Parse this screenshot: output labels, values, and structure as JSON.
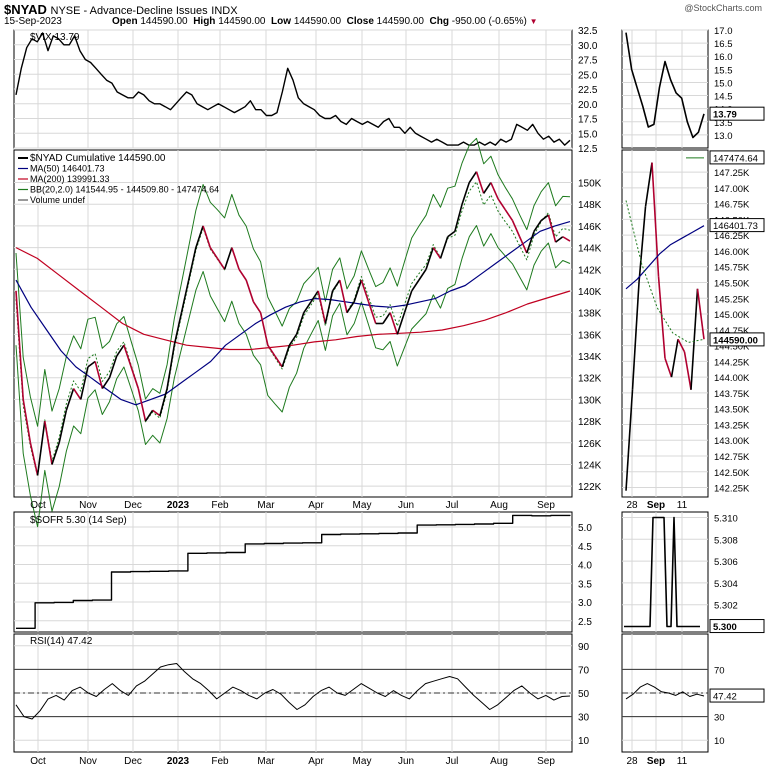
{
  "header": {
    "symbol": "$NYAD",
    "name": "NYSE - Advance-Decline Issues",
    "exchange": "INDX",
    "date": "15-Sep-2023",
    "open_label": "Open",
    "open": "144590.00",
    "high_label": "High",
    "high": "144590.00",
    "low_label": "Low",
    "low": "144590.00",
    "close_label": "Close",
    "close": "144590.00",
    "chg_label": "Chg",
    "chg": "-950.00 (-0.65%)",
    "credit": "@StockCharts.com"
  },
  "colors": {
    "price": "#000000",
    "down": "#b00030",
    "ma50": "#000080",
    "ma200": "#c00020",
    "bb": "#1e7a1e",
    "grid": "#d8d8d8",
    "ref": "#555555"
  },
  "x_labels_main": [
    "Oct",
    "Nov",
    "Dec",
    "2023",
    "Feb",
    "Mar",
    "Apr",
    "May",
    "Jun",
    "Jul",
    "Aug",
    "Sep"
  ],
  "x_labels_zoom": [
    "28",
    "Sep",
    "11"
  ],
  "chart_data": [
    {
      "type": "line",
      "title": "$VIX 13.79",
      "legend": [
        "$VIX 13.79"
      ],
      "ylim": [
        12.5,
        32.5
      ],
      "yticks": [
        "32.5",
        "30.0",
        "27.5",
        "25.0",
        "22.5",
        "20.0",
        "17.5",
        "15.0",
        "12.5"
      ],
      "zoom_ylim": [
        12.5,
        17.0
      ],
      "zoom_yticks": [
        "17.0",
        "16.5",
        "16.0",
        "15.5",
        "15.0",
        "14.5",
        "14.0",
        "13.5",
        "13.0"
      ],
      "last_value": "13.79",
      "series": [
        {
          "name": "$VIX",
          "values": [
            21.5,
            26,
            29.5,
            31,
            30.5,
            32,
            29,
            31.5,
            31,
            30,
            30,
            31.5,
            29,
            27.5,
            27,
            26,
            25,
            24,
            23.5,
            22,
            21.5,
            21,
            21,
            22,
            21.5,
            20.5,
            20,
            20,
            19.5,
            19,
            20,
            21,
            22,
            21.5,
            20,
            19.5,
            19,
            19.5,
            20,
            19.5,
            19,
            18.5,
            19,
            19.5,
            20.5,
            19,
            19,
            18,
            18,
            18.5,
            22,
            26,
            24,
            21,
            20,
            19.5,
            19,
            18,
            17.5,
            17.5,
            18,
            17,
            16.5,
            17.5,
            17,
            16.5,
            17,
            16.5,
            16,
            17,
            17.5,
            16,
            16,
            15,
            16,
            15,
            14.5,
            14,
            13.5,
            14,
            13.5,
            13,
            13,
            13,
            13.5,
            13,
            13,
            13.5,
            13,
            13.5,
            13,
            14,
            13.5,
            14,
            16.5,
            16,
            15.5,
            16.5,
            15,
            14,
            14.5,
            13.5,
            14,
            13,
            13.8
          ]
        }
      ]
    },
    {
      "type": "line",
      "title": "$NYAD Cumulative 144590.00",
      "legend": [
        "$NYAD Cumulative 144590.00",
        "MA(50) 146401.73",
        "MA(200) 139991.33",
        "BB(20,2.0) 141544.95 - 144509.80 - 147474.64",
        "Volume undef"
      ],
      "ylim": [
        121000,
        153000
      ],
      "yticks": [
        "150K",
        "148K",
        "146K",
        "144K",
        "142K",
        "140K",
        "138K",
        "136K",
        "134K",
        "132K",
        "130K",
        "128K",
        "126K",
        "124K",
        "122K"
      ],
      "zoom_ylim": [
        142100,
        147600
      ],
      "zoom_yticks": [
        "147.25K",
        "147.00K",
        "146.75K",
        "146.50K",
        "146.25K",
        "146.00K",
        "145.75K",
        "145.50K",
        "145.25K",
        "145.00K",
        "144.75K",
        "144.50K",
        "144.25K",
        "144.00K",
        "143.75K",
        "143.50K",
        "143.25K",
        "143.00K",
        "142.75K",
        "142.50K",
        "142.25K"
      ],
      "tags": [
        "147474.64",
        "146401.73",
        "144590.00"
      ],
      "series": [
        {
          "name": "$NYAD",
          "values": [
            140000,
            130000,
            126000,
            123000,
            128000,
            124000,
            126000,
            129000,
            131000,
            130000,
            133000,
            133500,
            131000,
            132000,
            134000,
            135000,
            133000,
            131000,
            128000,
            129000,
            128500,
            131000,
            135000,
            138000,
            141000,
            144000,
            146000,
            144000,
            143000,
            142000,
            144000,
            142000,
            141000,
            139000,
            138000,
            135000,
            134000,
            133000,
            135000,
            136000,
            138000,
            139000,
            140000,
            137000,
            140000,
            141000,
            138000,
            139000,
            141000,
            139000,
            137000,
            137000,
            138000,
            136000,
            138000,
            140000,
            141000,
            142000,
            144000,
            143000,
            145000,
            145500,
            148000,
            150000,
            151000,
            149000,
            150000,
            148500,
            147500,
            146500,
            145000,
            143500,
            145500,
            146500,
            147000,
            144500,
            145000,
            144600
          ]
        },
        {
          "name": "MA(50)",
          "values": [
            141000,
            138500,
            136500,
            134500,
            133000,
            132000,
            131000,
            130000,
            129500,
            130000,
            130500,
            131500,
            132500,
            133500,
            135000,
            136000,
            137000,
            137800,
            138500,
            139000,
            139300,
            139200,
            139000,
            138800,
            138600,
            138500,
            138700,
            139000,
            139300,
            140000,
            140500,
            141500,
            142500,
            143500,
            144500,
            145500,
            146000,
            146400
          ]
        },
        {
          "name": "MA(200)",
          "values": [
            144000,
            143000,
            141500,
            140000,
            138500,
            137000,
            136000,
            135500,
            135000,
            134800,
            134600,
            134600,
            134800,
            135000,
            135300,
            135500,
            135800,
            136000,
            136100,
            136200,
            136400,
            136800,
            137300,
            138000,
            138800,
            139400,
            140000
          ]
        }
      ]
    },
    {
      "type": "line",
      "title": "$SOFR 5.30 (14 Sep)",
      "legend": [
        "$SOFR 5.30 (14 Sep)"
      ],
      "ylim": [
        2.2,
        5.4
      ],
      "yticks": [
        "5.0",
        "4.5",
        "4.0",
        "3.5",
        "3.0",
        "2.5"
      ],
      "zoom_ylim": [
        5.2995,
        5.3105
      ],
      "zoom_yticks": [
        "5.310",
        "5.308",
        "5.306",
        "5.304",
        "5.302"
      ],
      "last_value": "5.300",
      "series": [
        {
          "name": "$SOFR",
          "values": [
            2.3,
            2.98,
            2.99,
            3.04,
            3.05,
            3.8,
            3.81,
            3.82,
            3.83,
            4.3,
            4.31,
            4.32,
            4.55,
            4.56,
            4.57,
            4.58,
            4.8,
            4.81,
            4.82,
            4.83,
            4.84,
            5.05,
            5.06,
            5.07,
            5.08,
            5.1,
            5.31,
            5.3,
            5.31,
            5.3
          ]
        }
      ]
    },
    {
      "type": "line",
      "title": "RSI(14) 47.42",
      "legend": [
        "RSI(14) 47.42"
      ],
      "ylim": [
        0,
        100
      ],
      "yticks": [
        "90",
        "70",
        "50",
        "30",
        "10"
      ],
      "zoom_yticks": [
        "70",
        "50",
        "30",
        "10"
      ],
      "last_value": "47.42",
      "series": [
        {
          "name": "RSI(14)",
          "values": [
            40,
            30,
            28,
            35,
            45,
            48,
            44,
            52,
            55,
            50,
            47,
            53,
            58,
            52,
            48,
            56,
            60,
            66,
            72,
            74,
            75,
            68,
            62,
            58,
            52,
            45,
            50,
            55,
            52,
            48,
            45,
            50,
            53,
            49,
            42,
            36,
            40,
            47,
            52,
            55,
            50,
            48,
            53,
            58,
            54,
            50,
            47,
            52,
            48,
            45,
            52,
            58,
            60,
            62,
            64,
            62,
            55,
            48,
            42,
            36,
            40,
            46,
            52,
            56,
            50,
            45,
            48,
            44,
            47,
            47.42
          ]
        }
      ]
    }
  ]
}
